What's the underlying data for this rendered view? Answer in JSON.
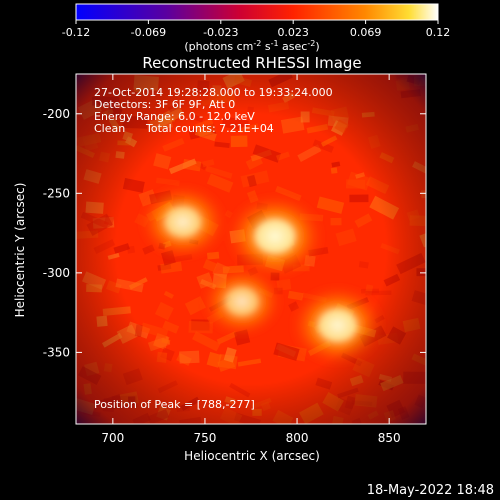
{
  "colorbar": {
    "colors": [
      "#0000ff",
      "#5a00a0",
      "#8a0080",
      "#ff0000",
      "#ff6600",
      "#ffcc00",
      "#ffffff"
    ],
    "ticks": [
      "-0.12",
      "-0.069",
      "-0.023",
      "0.023",
      "0.069",
      "0.12"
    ],
    "units_main": "(photons cm",
    "units_sup1": "-2",
    "units_mid": " s",
    "units_sup2": "-1",
    "units_tail": " asec",
    "units_sup3": "-2",
    "units_close": ")"
  },
  "plot": {
    "title": "Reconstructed RHESSI Image",
    "xlabel": "Heliocentric X (arcsec)",
    "ylabel": "Heliocentric Y (arcsec)",
    "x_ticks": [
      "700",
      "750",
      "800",
      "850"
    ],
    "y_ticks": [
      "-200",
      "-250",
      "-300",
      "-350"
    ],
    "xlim": [
      680,
      870
    ],
    "ylim": [
      -395,
      -175
    ],
    "background_color": "#ff2a00"
  },
  "annotations": {
    "line1": "27-Oct-2014 19:28:28.000 to 19:33:24.000",
    "line2": "Detectors: 3F 6F 9F, Att 0",
    "line3": "Energy Range: 6.0 - 12.0 keV",
    "line4_label": "Clean",
    "line4_counts": "Total counts: 7.21E+04",
    "peak": "Position of Peak = [788,-277]"
  },
  "sources": [
    {
      "x": 738,
      "y": -268,
      "strength": 0.75
    },
    {
      "x": 788,
      "y": -277,
      "strength": 1.0
    },
    {
      "x": 770,
      "y": -318,
      "strength": 0.6
    },
    {
      "x": 822,
      "y": -333,
      "strength": 0.9
    }
  ],
  "timestamp": "18-May-2022 18:48"
}
